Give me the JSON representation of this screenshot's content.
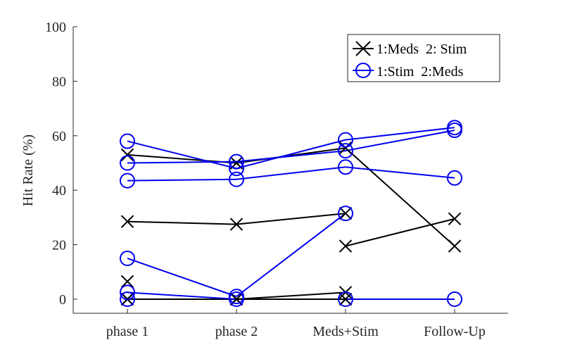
{
  "chart_data": {
    "type": "line",
    "title": "",
    "xlabel": "",
    "ylabel": "Hit Rate (%)",
    "categories": [
      "phase 1",
      "phase 2",
      "Meds+Stim",
      "Follow-Up"
    ],
    "ylim": [
      0,
      100
    ],
    "yticks": [
      0,
      20,
      40,
      60,
      80,
      100
    ],
    "grid": false,
    "legend_position": "top-right",
    "legend": [
      {
        "label": "1:Meds  2: Stim",
        "marker": "x",
        "color": "#000000"
      },
      {
        "label": "1:Stim  2:Meds",
        "marker": "o",
        "color": "#0000ee"
      }
    ],
    "series": [
      {
        "group": "1:Meds  2: Stim",
        "marker": "x",
        "color": "#000000",
        "values": [
          53,
          50,
          55.5,
          19.5
        ]
      },
      {
        "group": "1:Meds  2: Stim",
        "marker": "x",
        "color": "#000000",
        "values": [
          28.5,
          27.5,
          31.5,
          null
        ]
      },
      {
        "group": "1:Meds  2: Stim",
        "marker": "x",
        "color": "#000000",
        "values": [
          null,
          null,
          19.5,
          29.5
        ]
      },
      {
        "group": "1:Meds  2: Stim",
        "marker": "x",
        "color": "#000000",
        "values": [
          6.5,
          null,
          null,
          null
        ]
      },
      {
        "group": "1:Meds  2: Stim",
        "marker": "x",
        "color": "#000000",
        "values": [
          0,
          0,
          2.5,
          null
        ]
      },
      {
        "group": "1:Meds  2: Stim",
        "marker": "x",
        "color": "#000000",
        "values": [
          0,
          0,
          0,
          null
        ]
      },
      {
        "group": "1:Stim  2:Meds",
        "marker": "o",
        "color": "#0000ee",
        "values": [
          58,
          48,
          58.5,
          63
        ]
      },
      {
        "group": "1:Stim  2:Meds",
        "marker": "o",
        "color": "#0000ee",
        "values": [
          50,
          50.5,
          54.5,
          62
        ]
      },
      {
        "group": "1:Stim  2:Meds",
        "marker": "o",
        "color": "#0000ee",
        "values": [
          43.5,
          44,
          48.5,
          44.5
        ]
      },
      {
        "group": "1:Stim  2:Meds",
        "marker": "o",
        "color": "#0000ee",
        "values": [
          15,
          1,
          31.5,
          null
        ]
      },
      {
        "group": "1:Stim  2:Meds",
        "marker": "o",
        "color": "#0000ee",
        "values": [
          2.5,
          0,
          null,
          null
        ]
      },
      {
        "group": "1:Stim  2:Meds",
        "marker": "o",
        "color": "#0000ee",
        "values": [
          0,
          null,
          0,
          0
        ]
      }
    ]
  }
}
